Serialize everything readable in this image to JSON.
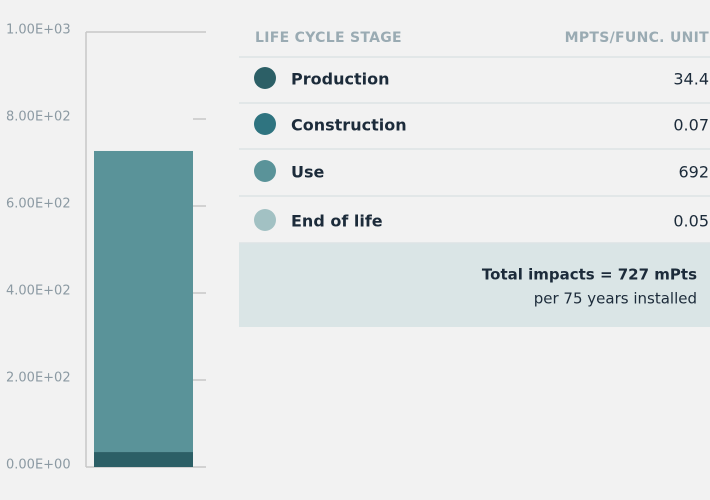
{
  "chart_data": {
    "type": "stacked_bar",
    "categories": [
      null
    ],
    "series": [
      {
        "name": "Production",
        "color": "#2c5f66",
        "values": [
          34.4
        ]
      },
      {
        "name": "Construction",
        "color": "#2f7480",
        "values": [
          0.07
        ]
      },
      {
        "name": "Use",
        "color": "#5a9399",
        "values": [
          692
        ]
      },
      {
        "name": "End of life",
        "color": "#a2c1c3",
        "values": [
          0.05
        ]
      }
    ],
    "ylim": [
      0,
      1000
    ],
    "yticks": [
      {
        "value": 0,
        "label": "0.00E+00"
      },
      {
        "value": 200,
        "label": "2.00E+02"
      },
      {
        "value": 400,
        "label": "4.00E+02"
      },
      {
        "value": 600,
        "label": "6.00E+02"
      },
      {
        "value": 800,
        "label": "8.00E+02"
      },
      {
        "value": 1000,
        "label": "1.00E+03"
      }
    ]
  },
  "table": {
    "header": [
      "LIFE CYCLE STAGE",
      "MPTS/FUNC. UNIT"
    ],
    "total": "Total impacts = 727 mPts",
    "note": "per 75 years installed"
  }
}
